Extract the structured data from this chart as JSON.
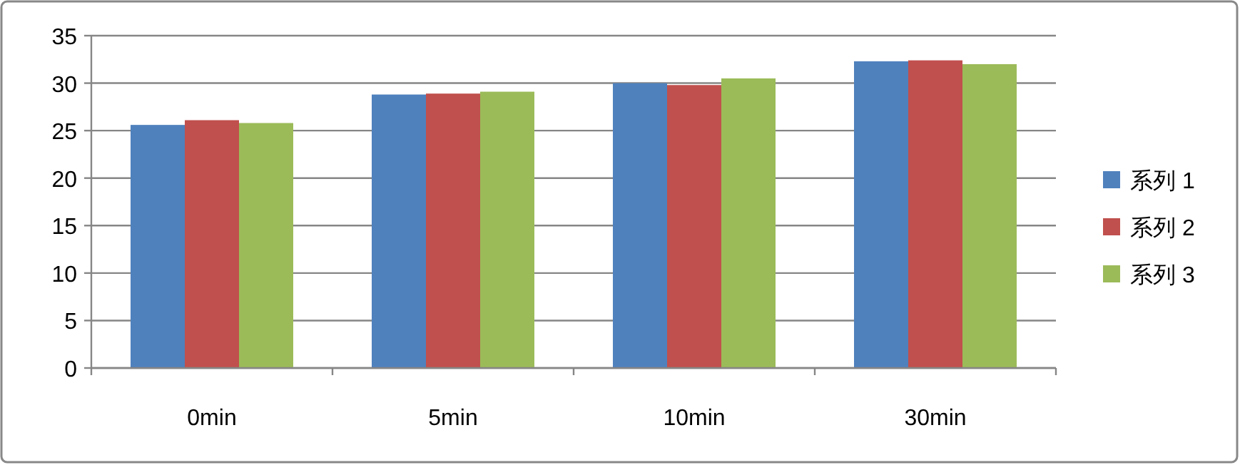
{
  "chart_data": {
    "type": "bar",
    "categories": [
      "0min",
      "5min",
      "10min",
      "30min"
    ],
    "series": [
      {
        "name": "系列 1",
        "color": "#4f81bd",
        "values": [
          25.6,
          28.8,
          30.0,
          32.3
        ]
      },
      {
        "name": "系列 2",
        "color": "#c0504d",
        "values": [
          26.1,
          28.9,
          29.8,
          32.4
        ]
      },
      {
        "name": "系列 3",
        "color": "#9bbb59",
        "values": [
          25.8,
          29.1,
          30.5,
          32.0
        ]
      }
    ],
    "ylim": [
      0,
      35
    ],
    "yticks": [
      0,
      5,
      10,
      15,
      20,
      25,
      30,
      35
    ],
    "grid": "y",
    "legend": "right"
  }
}
